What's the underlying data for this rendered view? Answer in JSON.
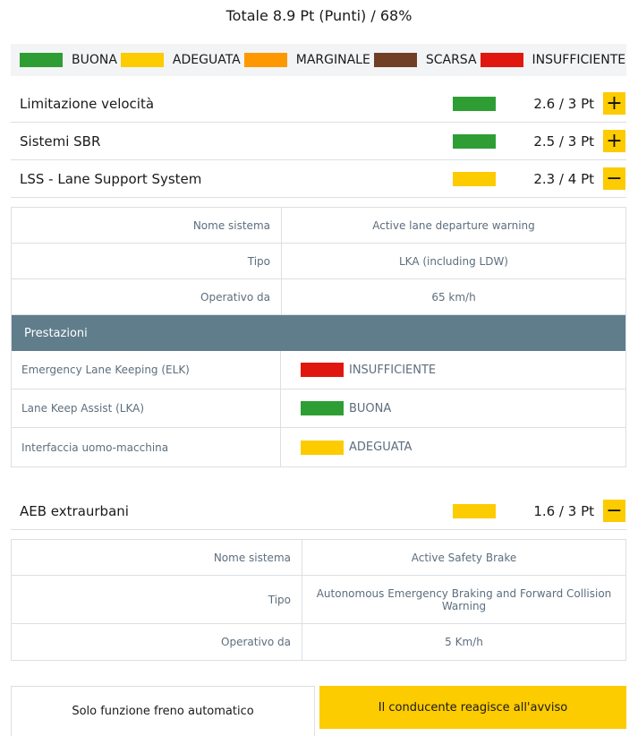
{
  "total": "Totale 8.9 Pt (Punti) / 68%",
  "colors": {
    "buona": "#2e9e34",
    "adeguata": "#fccb00",
    "marginale": "#fd9800",
    "scarsa": "#713f26",
    "insufficiente": "#e0170e",
    "accent": "#fccb00",
    "header": "#607d8b"
  },
  "legend": [
    {
      "label": "BUONA"
    },
    {
      "label": "ADEGUATA"
    },
    {
      "label": "MARGINALE"
    },
    {
      "label": "SCARSA"
    },
    {
      "label": "INSUFFICIENTE"
    }
  ],
  "categories": [
    {
      "title": "Limitazione velocità",
      "score": "2.6 / 3 Pt",
      "rating": "buona",
      "toggle": "+",
      "icon": "plus-icon"
    },
    {
      "title": "Sistemi SBR",
      "score": "2.5 / 3 Pt",
      "rating": "buona",
      "toggle": "+",
      "icon": "plus-icon"
    },
    {
      "title": "LSS - Lane Support System",
      "score": "2.3 / 4 Pt",
      "rating": "adeguata",
      "toggle": "−",
      "icon": "minus-icon"
    },
    {
      "title": "AEB extraurbani",
      "score": "1.6 / 3 Pt",
      "rating": "adeguata",
      "toggle": "−",
      "icon": "minus-icon"
    }
  ],
  "lss_details": [
    {
      "label": "Nome sistema",
      "value": "Active lane departure warning"
    },
    {
      "label": "Tipo",
      "value": "LKA (including LDW)"
    },
    {
      "label": "Operativo da",
      "value": "65 km/h"
    }
  ],
  "performance": {
    "header": "Prestazioni",
    "rows": [
      {
        "label": "Emergency Lane Keeping (ELK)",
        "rating": "insufficiente",
        "value": "INSUFFICIENTE"
      },
      {
        "label": "Lane Keep Assist (LKA)",
        "rating": "buona",
        "value": "BUONA"
      },
      {
        "label": "Interfaccia uomo-macchina",
        "rating": "adeguata",
        "value": "ADEGUATA"
      }
    ]
  },
  "aeb_details": [
    {
      "label": "Nome sistema",
      "value": "Active Safety Brake"
    },
    {
      "label": "Tipo",
      "value": "Autonomous Emergency Braking and Forward Collision Warning"
    },
    {
      "label": "Operativo da",
      "value": "5 Km/h"
    }
  ],
  "tabs": [
    {
      "label": "Solo funzione freno automatico",
      "active": false
    },
    {
      "label": "Il conducente reagisce all'avviso",
      "active": true
    }
  ]
}
